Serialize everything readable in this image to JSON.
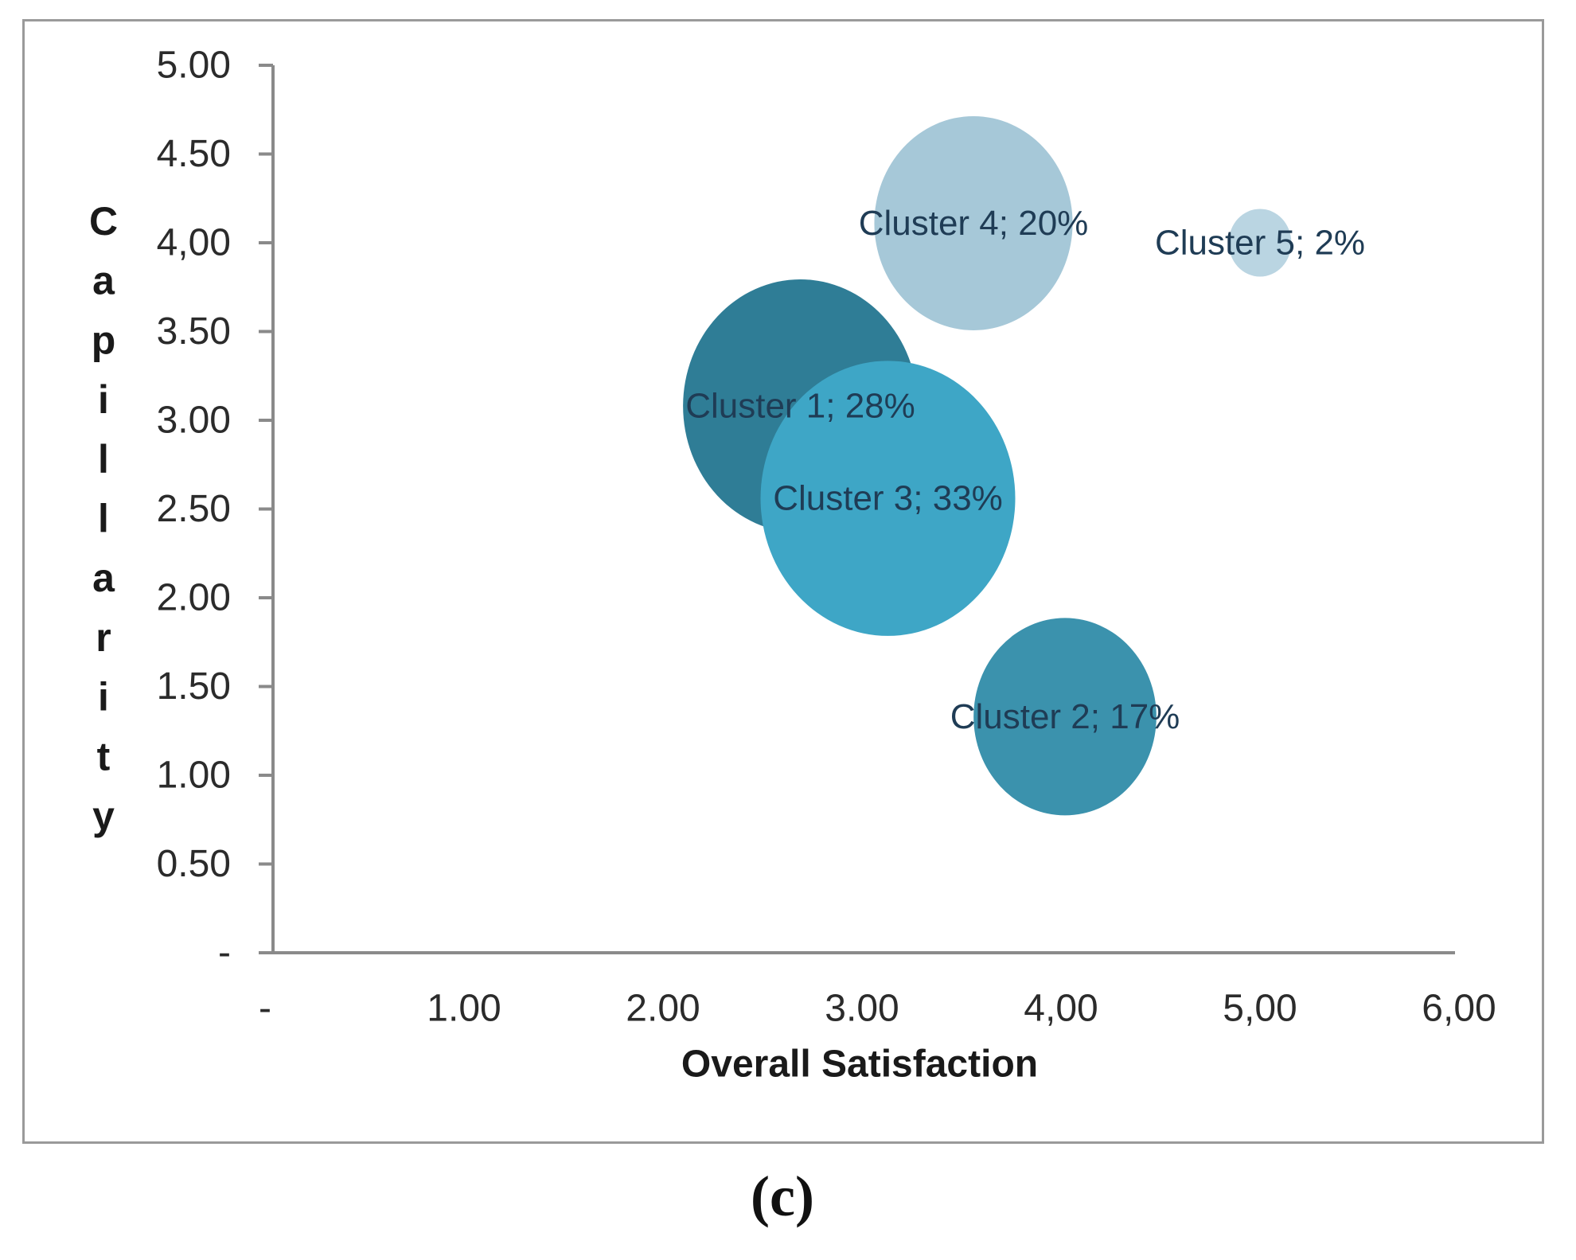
{
  "figure": {
    "caption": "(c)"
  },
  "chart_data": {
    "type": "scatter",
    "subtype": "bubble",
    "title": "",
    "xlabel": "Overall Satisfaction",
    "ylabel": "Capillarity",
    "xlim": [
      0,
      6
    ],
    "ylim": [
      0,
      5
    ],
    "grid": false,
    "legend": "none",
    "axis_color": "#8A8A8A",
    "tick_text_color": "#2B2B2B",
    "label_color": "#1F3C55",
    "x_ticks": [
      {
        "value": 0,
        "label": "-"
      },
      {
        "value": 1,
        "label": "1.00"
      },
      {
        "value": 2,
        "label": "2.00"
      },
      {
        "value": 3,
        "label": "3.00"
      },
      {
        "value": 4,
        "label": "4,00"
      },
      {
        "value": 5,
        "label": "5,00"
      },
      {
        "value": 6,
        "label": "6,00"
      }
    ],
    "y_ticks": [
      {
        "value": 5.0,
        "label": "5.00"
      },
      {
        "value": 4.5,
        "label": "4.50"
      },
      {
        "value": 4.0,
        "label": "4,00"
      },
      {
        "value": 3.5,
        "label": "3.50"
      },
      {
        "value": 3.0,
        "label": "3.00"
      },
      {
        "value": 2.5,
        "label": "2.50"
      },
      {
        "value": 2.0,
        "label": "2.00"
      },
      {
        "value": 1.5,
        "label": "1.50"
      },
      {
        "value": 1.0,
        "label": "1.00"
      },
      {
        "value": 0.5,
        "label": "0.50"
      },
      {
        "value": 0.0,
        "label": "-"
      }
    ],
    "series": [
      {
        "name": "Cluster 1",
        "x": 2.69,
        "y": 3.08,
        "size_pct": 28,
        "label": "Cluster 1; 28%",
        "color": "#2F7D96"
      },
      {
        "name": "Cluster 3",
        "x": 3.13,
        "y": 2.56,
        "size_pct": 33,
        "label": "Cluster 3; 33%",
        "color": "#3EA6C6"
      },
      {
        "name": "Cluster 2",
        "x": 4.02,
        "y": 1.33,
        "size_pct": 17,
        "label": "Cluster 2; 17%",
        "color": "#3B92AD"
      },
      {
        "name": "Cluster 4",
        "x": 3.56,
        "y": 4.11,
        "size_pct": 20,
        "label": "Cluster 4; 20%",
        "color": "#A6C8D8"
      },
      {
        "name": "Cluster 5",
        "x": 5.0,
        "y": 4.0,
        "size_pct": 2,
        "label": "Cluster 5; 2%",
        "color": "#BAD5E2"
      }
    ]
  }
}
